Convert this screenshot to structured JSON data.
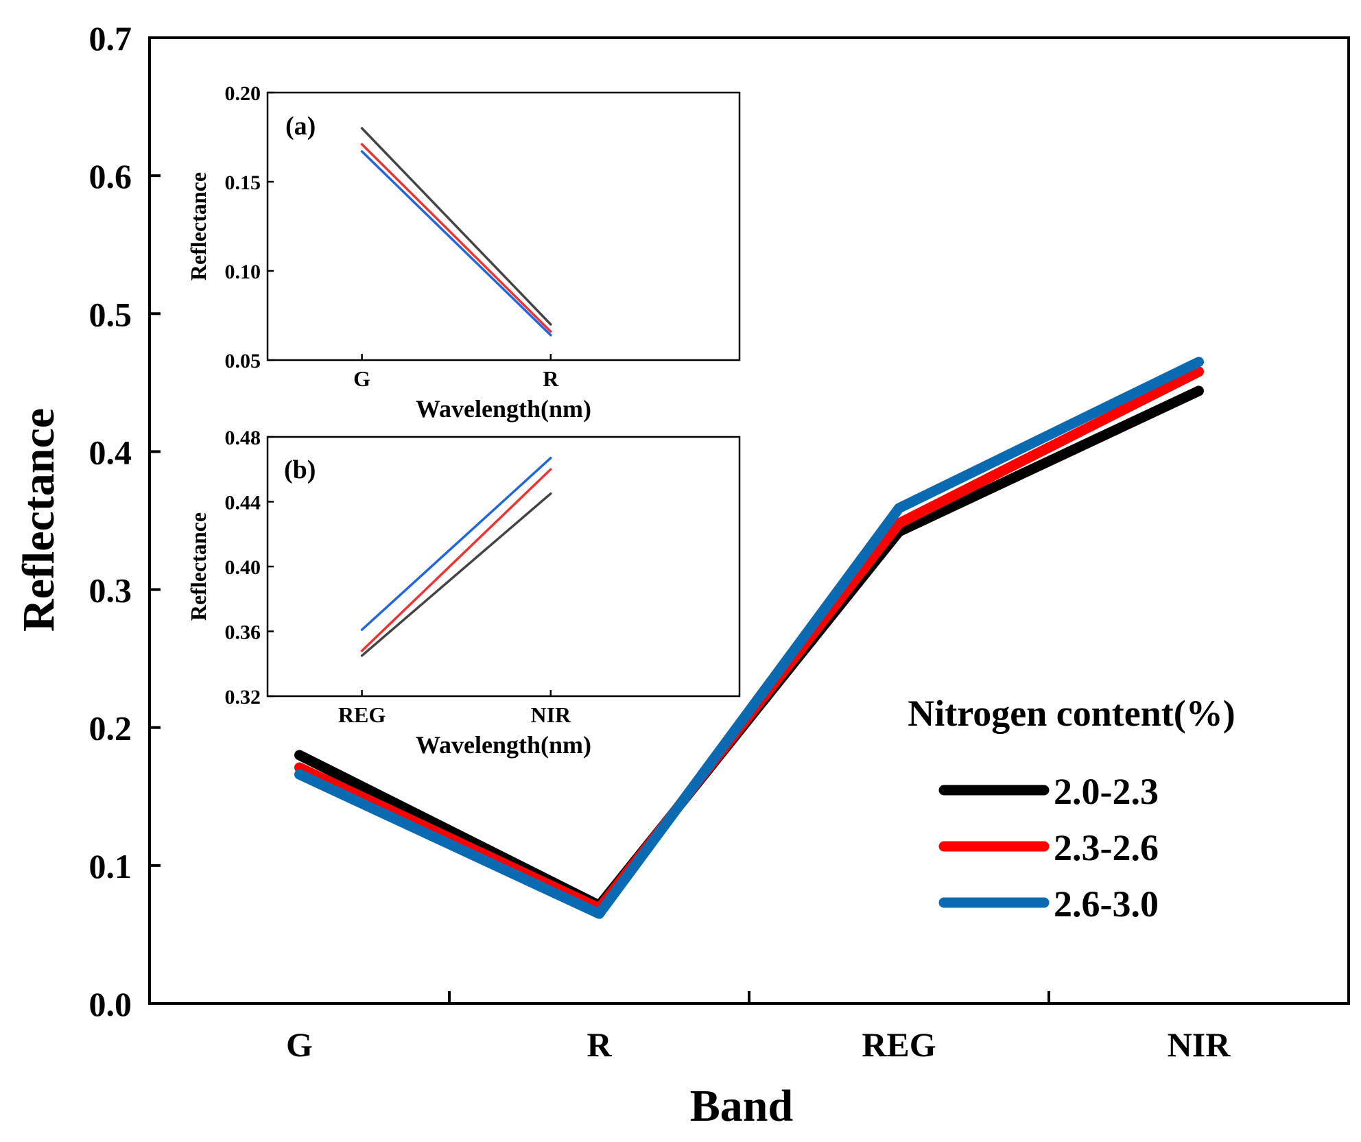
{
  "chart_data": [
    {
      "id": "main",
      "type": "line",
      "title": "",
      "xlabel": "Band",
      "ylabel": "Reflectance",
      "categories": [
        "G",
        "R",
        "REG",
        "NIR"
      ],
      "ylim": [
        0.0,
        0.7
      ],
      "yticks": [
        0.0,
        0.1,
        0.2,
        0.3,
        0.4,
        0.5,
        0.6,
        0.7
      ],
      "ytick_labels": [
        "0.0",
        "0.1",
        "0.2",
        "0.3",
        "0.4",
        "0.5",
        "0.6",
        "0.7"
      ],
      "legend": {
        "title": "Nitrogen content(%)",
        "placement": "bottom-right"
      },
      "series": [
        {
          "name": "2.0-2.3",
          "color": "#000000",
          "values": [
            0.18,
            0.071,
            0.342,
            0.444
          ]
        },
        {
          "name": "2.3-2.6",
          "color": "#ff0000",
          "values": [
            0.171,
            0.069,
            0.348,
            0.458
          ]
        },
        {
          "name": "2.6-3.0",
          "color": "#0a6bb3",
          "values": [
            0.166,
            0.065,
            0.359,
            0.465
          ]
        }
      ]
    },
    {
      "id": "inset_a",
      "type": "line",
      "panel_label": "(a)",
      "xlabel": "Wavelength(nm)",
      "ylabel": "Reflectance",
      "categories": [
        "G",
        "R"
      ],
      "ylim": [
        0.05,
        0.2
      ],
      "yticks": [
        0.05,
        0.1,
        0.15,
        0.2
      ],
      "ytick_labels": [
        "0.05",
        "0.10",
        "0.15",
        "0.20"
      ],
      "series": [
        {
          "name": "2.0-2.3",
          "color": "#444444",
          "values": [
            0.18,
            0.07
          ]
        },
        {
          "name": "2.3-2.6",
          "color": "#ee3333",
          "values": [
            0.171,
            0.066
          ]
        },
        {
          "name": "2.6-3.0",
          "color": "#2266dd",
          "values": [
            0.167,
            0.064
          ]
        }
      ]
    },
    {
      "id": "inset_b",
      "type": "line",
      "panel_label": "(b)",
      "xlabel": "Wavelength(nm)",
      "ylabel": "Reflectance",
      "categories": [
        "REG",
        "NIR"
      ],
      "ylim": [
        0.32,
        0.48
      ],
      "yticks": [
        0.32,
        0.36,
        0.4,
        0.44,
        0.48
      ],
      "ytick_labels": [
        "0.32",
        "0.36",
        "0.40",
        "0.44",
        "0.48"
      ],
      "series": [
        {
          "name": "2.0-2.3",
          "color": "#444444",
          "values": [
            0.345,
            0.445
          ]
        },
        {
          "name": "2.3-2.6",
          "color": "#ee3333",
          "values": [
            0.348,
            0.46
          ]
        },
        {
          "name": "2.6-3.0",
          "color": "#2266dd",
          "values": [
            0.361,
            0.467
          ]
        }
      ]
    }
  ]
}
